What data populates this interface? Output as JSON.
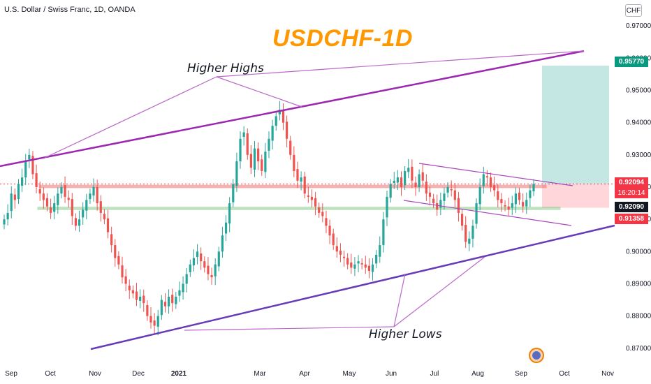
{
  "header": {
    "symbol": "U.S. Dollar / Swiss Franc, 1D, OANDA",
    "currency": "CHF"
  },
  "annotations": {
    "title": "USDCHF-1D",
    "higher_highs": "Higher Highs",
    "higher_lows": "Higher Lows"
  },
  "price_badges": {
    "target": "0.95770",
    "current": "0.92094",
    "countdown": "16:20:14",
    "bid": "0.92090",
    "stop": "0.91358"
  },
  "colors": {
    "up": "#26a69a",
    "down": "#ef5350",
    "trendline": "#7b1fa2",
    "support_band": "#4caf50",
    "resistance_band": "#ef5350",
    "target_zone": "#b2dfdb",
    "stop_zone": "#ffcdd2",
    "title": "#ff9800"
  },
  "chart_data": {
    "type": "candlestick",
    "ylim": [
      0.868,
      0.972
    ],
    "y_ticks": [
      "0.97000",
      "0.96000",
      "0.95000",
      "0.94000",
      "0.93000",
      "0.92000",
      "0.91000",
      "0.90000",
      "0.89000",
      "0.88000",
      "0.87000"
    ],
    "x_ticks": [
      "Sep",
      "Oct",
      "Nov",
      "Dec",
      "2021",
      "Mar",
      "Apr",
      "May",
      "Jun",
      "Jul",
      "Aug",
      "Sep",
      "Oct",
      "Nov"
    ],
    "close_path": [
      0.91,
      0.912,
      0.918,
      0.916,
      0.921,
      0.923,
      0.928,
      0.93,
      0.924,
      0.92,
      0.918,
      0.916,
      0.914,
      0.912,
      0.915,
      0.918,
      0.92,
      0.917,
      0.916,
      0.911,
      0.908,
      0.91,
      0.913,
      0.916,
      0.918,
      0.92,
      0.915,
      0.912,
      0.91,
      0.906,
      0.902,
      0.898,
      0.896,
      0.892,
      0.89,
      0.888,
      0.887,
      0.885,
      0.886,
      0.884,
      0.88,
      0.878,
      0.877,
      0.88,
      0.885,
      0.883,
      0.886,
      0.884,
      0.886,
      0.888,
      0.89,
      0.893,
      0.896,
      0.898,
      0.9,
      0.897,
      0.895,
      0.893,
      0.892,
      0.896,
      0.9,
      0.905,
      0.909,
      0.915,
      0.921,
      0.928,
      0.935,
      0.937,
      0.93,
      0.926,
      0.932,
      0.928,
      0.925,
      0.931,
      0.935,
      0.939,
      0.942,
      0.944,
      0.94,
      0.935,
      0.93,
      0.925,
      0.922,
      0.923,
      0.918,
      0.917,
      0.916,
      0.914,
      0.912,
      0.911,
      0.908,
      0.905,
      0.902,
      0.9,
      0.899,
      0.898,
      0.896,
      0.895,
      0.896,
      0.897,
      0.896,
      0.895,
      0.894,
      0.896,
      0.899,
      0.902,
      0.91,
      0.917,
      0.921,
      0.922,
      0.923,
      0.92,
      0.925,
      0.926,
      0.922,
      0.92,
      0.924,
      0.922,
      0.918,
      0.917,
      0.915,
      0.913,
      0.916,
      0.918,
      0.92,
      0.919,
      0.916,
      0.912,
      0.908,
      0.903,
      0.904,
      0.908,
      0.915,
      0.92,
      0.924,
      0.923,
      0.92,
      0.919,
      0.916,
      0.915,
      0.914,
      0.913,
      0.915,
      0.918,
      0.916,
      0.914,
      0.916,
      0.919,
      0.921
    ],
    "price_lines": {
      "current": 0.92094,
      "resistance_band": [
        0.9198,
        0.9206
      ],
      "support_band": [
        0.913,
        0.9138
      ]
    },
    "position": {
      "entry": 0.92094,
      "target": 0.9577,
      "stop": 0.91358
    }
  }
}
